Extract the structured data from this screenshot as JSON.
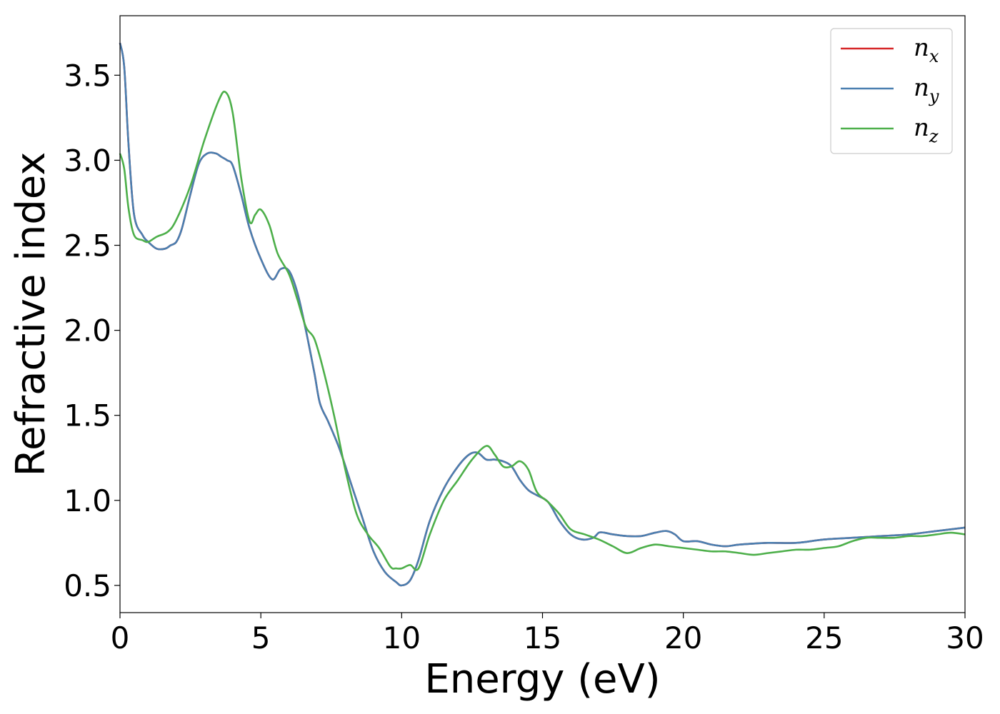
{
  "chart_data": {
    "type": "line",
    "title": "",
    "xlabel": "Energy (eV)",
    "ylabel": "Refractive index",
    "xlim": [
      0,
      30
    ],
    "ylim": [
      0.34,
      3.85
    ],
    "x_ticks": [
      "0",
      "5",
      "10",
      "15",
      "20",
      "25",
      "30"
    ],
    "y_ticks": [
      "0.5",
      "1.0",
      "1.5",
      "2.0",
      "2.5",
      "3.0",
      "3.5"
    ],
    "grid": false,
    "legend_position": "top-right",
    "series": [
      {
        "name": "n",
        "subscript": "x",
        "color": "#d62728",
        "x": [
          0,
          0.15,
          0.3,
          0.5,
          0.8,
          1.0,
          1.3,
          1.6,
          1.8,
          2.0,
          2.2,
          2.5,
          2.8,
          3.1,
          3.4,
          3.6,
          3.8,
          4.0,
          4.3,
          4.6,
          5.0,
          5.4,
          5.7,
          6.0,
          6.3,
          6.6,
          6.9,
          7.1,
          7.4,
          7.8,
          8.2,
          8.6,
          9.0,
          9.4,
          9.8,
          10.0,
          10.3,
          10.6,
          11.0,
          11.5,
          12.0,
          12.4,
          12.7,
          13.0,
          13.3,
          13.6,
          13.9,
          14.2,
          14.5,
          14.8,
          15.2,
          15.6,
          16.0,
          16.4,
          16.8,
          17.0,
          17.2,
          17.5,
          18.0,
          18.5,
          19.0,
          19.4,
          19.7,
          20.0,
          20.5,
          21.0,
          21.5,
          22.0,
          23.0,
          24.0,
          25.0,
          26.0,
          27.0,
          28.0,
          29.0,
          30.0
        ],
        "y": [
          3.69,
          3.55,
          3.1,
          2.68,
          2.56,
          2.52,
          2.48,
          2.48,
          2.5,
          2.52,
          2.6,
          2.8,
          2.98,
          3.04,
          3.04,
          3.02,
          3.0,
          2.97,
          2.8,
          2.6,
          2.42,
          2.3,
          2.36,
          2.35,
          2.22,
          2.0,
          1.75,
          1.57,
          1.46,
          1.3,
          1.1,
          0.9,
          0.7,
          0.58,
          0.52,
          0.5,
          0.53,
          0.65,
          0.88,
          1.07,
          1.2,
          1.27,
          1.28,
          1.24,
          1.24,
          1.23,
          1.2,
          1.12,
          1.06,
          1.03,
          0.99,
          0.88,
          0.8,
          0.77,
          0.78,
          0.81,
          0.81,
          0.8,
          0.79,
          0.79,
          0.81,
          0.82,
          0.8,
          0.76,
          0.76,
          0.74,
          0.73,
          0.74,
          0.75,
          0.75,
          0.77,
          0.78,
          0.79,
          0.8,
          0.82,
          0.84
        ]
      },
      {
        "name": "n",
        "subscript": "y",
        "color": "#4a7fb0",
        "x": [
          0,
          0.15,
          0.3,
          0.5,
          0.8,
          1.0,
          1.3,
          1.6,
          1.8,
          2.0,
          2.2,
          2.5,
          2.8,
          3.1,
          3.4,
          3.6,
          3.8,
          4.0,
          4.3,
          4.6,
          5.0,
          5.4,
          5.7,
          6.0,
          6.3,
          6.6,
          6.9,
          7.1,
          7.4,
          7.8,
          8.2,
          8.6,
          9.0,
          9.4,
          9.8,
          10.0,
          10.3,
          10.6,
          11.0,
          11.5,
          12.0,
          12.4,
          12.7,
          13.0,
          13.3,
          13.6,
          13.9,
          14.2,
          14.5,
          14.8,
          15.2,
          15.6,
          16.0,
          16.4,
          16.8,
          17.0,
          17.2,
          17.5,
          18.0,
          18.5,
          19.0,
          19.4,
          19.7,
          20.0,
          20.5,
          21.0,
          21.5,
          22.0,
          23.0,
          24.0,
          25.0,
          26.0,
          27.0,
          28.0,
          29.0,
          30.0
        ],
        "y": [
          3.69,
          3.55,
          3.1,
          2.68,
          2.56,
          2.52,
          2.48,
          2.48,
          2.5,
          2.52,
          2.6,
          2.8,
          2.98,
          3.04,
          3.04,
          3.02,
          3.0,
          2.97,
          2.8,
          2.6,
          2.42,
          2.3,
          2.36,
          2.35,
          2.22,
          2.0,
          1.75,
          1.57,
          1.46,
          1.3,
          1.1,
          0.9,
          0.7,
          0.58,
          0.52,
          0.5,
          0.53,
          0.65,
          0.88,
          1.07,
          1.2,
          1.27,
          1.28,
          1.24,
          1.24,
          1.23,
          1.2,
          1.12,
          1.06,
          1.03,
          0.99,
          0.88,
          0.8,
          0.77,
          0.78,
          0.81,
          0.81,
          0.8,
          0.79,
          0.79,
          0.81,
          0.82,
          0.8,
          0.76,
          0.76,
          0.74,
          0.73,
          0.74,
          0.75,
          0.75,
          0.77,
          0.78,
          0.79,
          0.8,
          0.82,
          0.84
        ]
      },
      {
        "name": "n",
        "subscript": "z",
        "color": "#4daf4a",
        "x": [
          0,
          0.15,
          0.3,
          0.5,
          0.8,
          1.0,
          1.3,
          1.7,
          2.0,
          2.5,
          3.0,
          3.5,
          3.75,
          4.0,
          4.3,
          4.6,
          4.8,
          5.0,
          5.3,
          5.6,
          6.0,
          6.3,
          6.6,
          6.9,
          7.2,
          7.6,
          8.0,
          8.4,
          8.8,
          9.2,
          9.6,
          9.8,
          10.0,
          10.3,
          10.6,
          11.0,
          11.5,
          12.0,
          12.5,
          13.0,
          13.3,
          13.6,
          13.9,
          14.2,
          14.5,
          14.8,
          15.2,
          15.6,
          16.0,
          16.5,
          17.0,
          17.5,
          18.0,
          18.5,
          19.0,
          19.5,
          20.0,
          20.5,
          21.0,
          21.5,
          22.0,
          22.5,
          23.0,
          23.5,
          24.0,
          24.5,
          25.0,
          25.5,
          26.0,
          26.5,
          27.0,
          27.5,
          28.0,
          28.5,
          29.0,
          29.5,
          30.0
        ],
        "y": [
          3.04,
          2.95,
          2.72,
          2.56,
          2.53,
          2.52,
          2.55,
          2.58,
          2.65,
          2.85,
          3.12,
          3.35,
          3.4,
          3.28,
          2.9,
          2.64,
          2.68,
          2.71,
          2.62,
          2.45,
          2.33,
          2.18,
          2.02,
          1.95,
          1.78,
          1.5,
          1.18,
          0.92,
          0.8,
          0.72,
          0.61,
          0.6,
          0.6,
          0.62,
          0.6,
          0.8,
          1.0,
          1.12,
          1.24,
          1.32,
          1.27,
          1.2,
          1.2,
          1.23,
          1.18,
          1.05,
          0.99,
          0.92,
          0.83,
          0.8,
          0.77,
          0.73,
          0.69,
          0.72,
          0.74,
          0.73,
          0.72,
          0.71,
          0.7,
          0.7,
          0.69,
          0.68,
          0.69,
          0.7,
          0.71,
          0.71,
          0.72,
          0.73,
          0.76,
          0.78,
          0.78,
          0.78,
          0.79,
          0.79,
          0.8,
          0.81,
          0.8
        ]
      }
    ]
  }
}
